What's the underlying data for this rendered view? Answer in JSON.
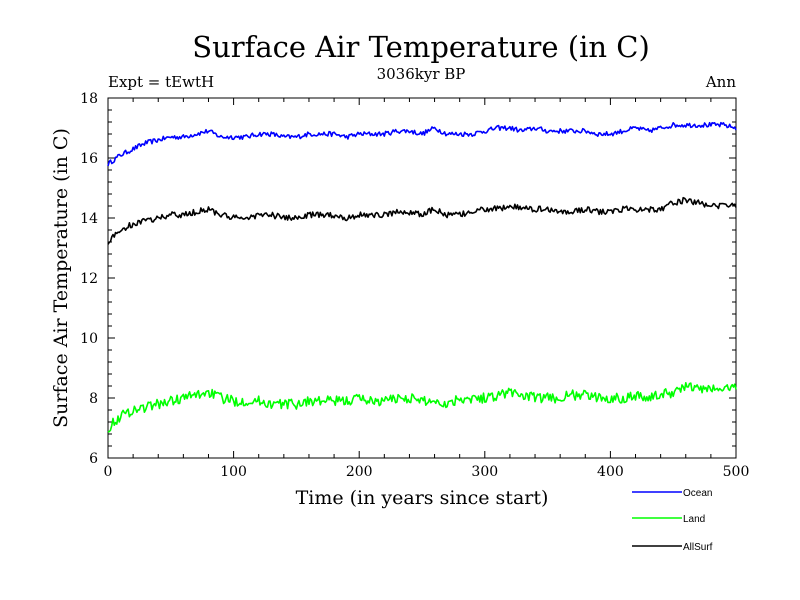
{
  "chart_data": {
    "type": "line",
    "title": "Surface Air Temperature (in C)",
    "subtitle": "3036kyr BP",
    "left_note": "Expt = tEwtH",
    "right_note": "Ann",
    "xlabel": "Time (in years since start)",
    "ylabel": "Surface Air Temperature (in C)",
    "xlim": [
      0,
      500
    ],
    "ylim": [
      6,
      18
    ],
    "xticks": [
      0,
      100,
      200,
      300,
      400,
      500
    ],
    "yticks": [
      6,
      8,
      10,
      12,
      14,
      16,
      18
    ],
    "legend_position": "below-right",
    "x": [
      0,
      10,
      20,
      30,
      40,
      50,
      60,
      70,
      80,
      90,
      100,
      110,
      120,
      130,
      140,
      150,
      160,
      170,
      180,
      190,
      200,
      210,
      220,
      230,
      240,
      250,
      260,
      270,
      280,
      290,
      300,
      310,
      320,
      330,
      340,
      350,
      360,
      370,
      380,
      390,
      400,
      410,
      420,
      430,
      440,
      450,
      460,
      470,
      480,
      490,
      500
    ],
    "series": [
      {
        "name": "Ocean",
        "color": "#0000ff",
        "values": [
          15.8,
          16.1,
          16.3,
          16.5,
          16.6,
          16.7,
          16.7,
          16.8,
          16.9,
          16.7,
          16.7,
          16.7,
          16.8,
          16.8,
          16.7,
          16.7,
          16.8,
          16.8,
          16.8,
          16.7,
          16.8,
          16.8,
          16.8,
          16.9,
          16.9,
          16.8,
          17.0,
          16.8,
          16.8,
          16.8,
          16.9,
          17.0,
          17.0,
          16.9,
          17.0,
          16.9,
          16.9,
          16.9,
          16.9,
          16.8,
          16.8,
          16.9,
          17.0,
          16.9,
          17.0,
          17.1,
          17.1,
          17.1,
          17.1,
          17.1,
          17.0
        ]
      },
      {
        "name": "Land",
        "color": "#00ff00",
        "values": [
          7.0,
          7.4,
          7.6,
          7.7,
          7.8,
          7.9,
          8.0,
          8.1,
          8.2,
          8.0,
          7.9,
          7.9,
          7.9,
          7.8,
          7.8,
          7.8,
          7.9,
          7.9,
          7.9,
          7.9,
          8.0,
          7.9,
          7.9,
          8.0,
          8.0,
          7.9,
          7.9,
          7.8,
          8.0,
          8.0,
          8.0,
          8.1,
          8.2,
          8.1,
          8.0,
          8.0,
          8.0,
          8.1,
          8.1,
          8.0,
          8.0,
          8.0,
          8.1,
          8.0,
          8.1,
          8.2,
          8.4,
          8.3,
          8.3,
          8.3,
          8.4
        ]
      },
      {
        "name": "AllSurf",
        "color": "#000000",
        "values": [
          13.2,
          13.6,
          13.8,
          13.9,
          14.0,
          14.1,
          14.1,
          14.2,
          14.3,
          14.1,
          14.0,
          14.0,
          14.1,
          14.1,
          14.0,
          14.0,
          14.1,
          14.1,
          14.1,
          14.0,
          14.1,
          14.1,
          14.1,
          14.2,
          14.2,
          14.1,
          14.3,
          14.1,
          14.1,
          14.2,
          14.3,
          14.3,
          14.4,
          14.3,
          14.3,
          14.3,
          14.2,
          14.2,
          14.3,
          14.2,
          14.2,
          14.3,
          14.3,
          14.3,
          14.3,
          14.5,
          14.6,
          14.5,
          14.4,
          14.4,
          14.4
        ]
      }
    ]
  }
}
